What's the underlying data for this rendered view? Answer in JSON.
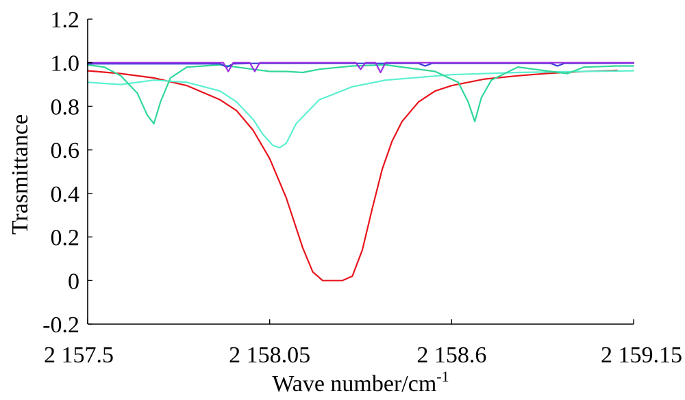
{
  "chart_data": {
    "type": "line",
    "xlabel": "Wave number/cm",
    "xlabel_sup": "-1",
    "ylabel": "Trasmittance",
    "xlim": [
      2157.5,
      2159.15
    ],
    "ylim": [
      -0.2,
      1.2
    ],
    "x_ticks": [
      {
        "value": 2157.5,
        "label": "2 157.5"
      },
      {
        "value": 2158.05,
        "label": "2 158.05"
      },
      {
        "value": 2158.6,
        "label": "2 158.6"
      },
      {
        "value": 2159.15,
        "label": "2 159.15"
      }
    ],
    "y_ticks": [
      {
        "value": 1.2,
        "label": "1.2"
      },
      {
        "value": 1.0,
        "label": "1.0"
      },
      {
        "value": 0.8,
        "label": "0.8"
      },
      {
        "value": 0.6,
        "label": "0.6"
      },
      {
        "value": 0.4,
        "label": "0.4"
      },
      {
        "value": 0.2,
        "label": "0.2"
      },
      {
        "value": 0.0,
        "label": "0"
      },
      {
        "value": -0.2,
        "label": "-0.2"
      }
    ],
    "grid": false,
    "series": [
      {
        "color": "#e8141c",
        "x": [
          2157.5,
          2157.6,
          2157.7,
          2157.8,
          2157.9,
          2157.95,
          2158.0,
          2158.05,
          2158.1,
          2158.15,
          2158.18,
          2158.21,
          2158.24,
          2158.27,
          2158.3,
          2158.33,
          2158.36,
          2158.39,
          2158.42,
          2158.45,
          2158.5,
          2158.55,
          2158.6,
          2158.7,
          2158.8,
          2158.9,
          2159.0,
          2159.1
        ],
        "y": [
          0.963,
          0.95,
          0.93,
          0.895,
          0.83,
          0.78,
          0.69,
          0.56,
          0.38,
          0.15,
          0.04,
          0.0,
          0.0,
          0.0,
          0.02,
          0.14,
          0.33,
          0.51,
          0.64,
          0.73,
          0.82,
          0.87,
          0.895,
          0.925,
          0.94,
          0.952,
          0.96,
          0.965
        ]
      },
      {
        "color": "#5cf0d0",
        "x": [
          2157.5,
          2157.6,
          2157.7,
          2157.8,
          2157.9,
          2157.95,
          2158.0,
          2158.03,
          2158.06,
          2158.08,
          2158.1,
          2158.13,
          2158.2,
          2158.3,
          2158.4,
          2158.6,
          2158.8,
          2159.0,
          2159.15
        ],
        "y": [
          0.91,
          0.9,
          0.92,
          0.91,
          0.87,
          0.82,
          0.74,
          0.67,
          0.62,
          0.61,
          0.63,
          0.72,
          0.83,
          0.89,
          0.92,
          0.945,
          0.955,
          0.96,
          0.963
        ]
      },
      {
        "color": "#30d89a",
        "x": [
          2157.5,
          2157.55,
          2157.6,
          2157.65,
          2157.68,
          2157.7,
          2157.72,
          2157.75,
          2157.8,
          2157.9,
          2158.0,
          2158.05,
          2158.1,
          2158.15,
          2158.2,
          2158.3,
          2158.4,
          2158.55,
          2158.62,
          2158.65,
          2158.67,
          2158.69,
          2158.72,
          2158.8,
          2158.9,
          2158.95,
          2159.0,
          2159.1,
          2159.15
        ],
        "y": [
          0.99,
          0.98,
          0.94,
          0.86,
          0.76,
          0.72,
          0.82,
          0.93,
          0.98,
          0.99,
          0.97,
          0.96,
          0.96,
          0.955,
          0.97,
          0.985,
          0.99,
          0.96,
          0.91,
          0.82,
          0.73,
          0.84,
          0.92,
          0.98,
          0.96,
          0.95,
          0.98,
          0.985,
          0.985
        ]
      },
      {
        "color": "#3a3ad8",
        "x": [
          2157.5,
          2157.9,
          2157.92,
          2157.94,
          2158.0,
          2158.5,
          2158.52,
          2158.54,
          2158.9,
          2158.92,
          2158.94,
          2159.15
        ],
        "y": [
          0.995,
          0.995,
          0.98,
          0.995,
          0.997,
          0.997,
          0.985,
          0.997,
          0.997,
          0.985,
          0.997,
          0.998
        ]
      },
      {
        "color": "#9a2de0",
        "x": [
          2157.5,
          2157.91,
          2157.925,
          2157.94,
          2157.99,
          2158.005,
          2158.02,
          2158.31,
          2158.325,
          2158.34,
          2158.37,
          2158.385,
          2158.4,
          2159.15
        ],
        "y": [
          1.0,
          1.0,
          0.96,
          1.0,
          1.0,
          0.96,
          1.0,
          1.0,
          0.97,
          1.0,
          1.0,
          0.955,
          1.0,
          1.0
        ]
      }
    ]
  }
}
